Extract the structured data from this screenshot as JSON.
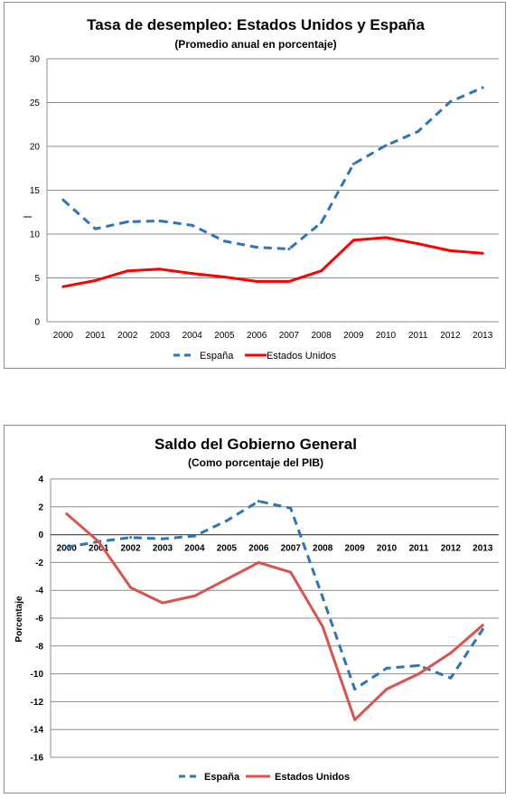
{
  "chart_data": [
    {
      "type": "line",
      "title": "Tasa de desempleo: Estados Unidos y España",
      "subtitle": "(Promedio anual en porcentaje)",
      "xlabel": "",
      "ylabel": "",
      "categories": [
        "2000",
        "2001",
        "2002",
        "2003",
        "2004",
        "2005",
        "2006",
        "2007",
        "2008",
        "2009",
        "2010",
        "2011",
        "2012",
        "2013"
      ],
      "ylim": [
        0,
        30
      ],
      "yticks": [
        0,
        5,
        10,
        15,
        20,
        25,
        30
      ],
      "grid": true,
      "legend": "bottom",
      "series": [
        {
          "name": "España",
          "style": "dashed",
          "color": "#2e75b6",
          "values": [
            13.9,
            10.6,
            11.4,
            11.5,
            11.0,
            9.2,
            8.5,
            8.3,
            11.3,
            18.0,
            20.1,
            21.7,
            25.1,
            26.7
          ]
        },
        {
          "name": "Estados Unidos",
          "style": "solid",
          "color": "#ff0000",
          "values": [
            4.0,
            4.7,
            5.8,
            6.0,
            5.5,
            5.1,
            4.6,
            4.6,
            5.8,
            9.3,
            9.6,
            8.9,
            8.1,
            7.8
          ]
        }
      ]
    },
    {
      "type": "line",
      "title": "Saldo del Gobierno General",
      "subtitle": "(Como porcentaje del PIB)",
      "xlabel": "",
      "ylabel": "Porcentaje",
      "categories": [
        "2000",
        "2001",
        "2002",
        "2003",
        "2004",
        "2005",
        "2006",
        "2007",
        "2008",
        "2009",
        "2010",
        "2011",
        "2012",
        "2013"
      ],
      "ylim": [
        -16,
        4
      ],
      "yticks": [
        -16,
        -14,
        -12,
        -10,
        -8,
        -6,
        -4,
        -2,
        0,
        2,
        4
      ],
      "grid": true,
      "legend": "bottom",
      "series": [
        {
          "name": "España",
          "style": "dashed",
          "color": "#2e75b6",
          "values": [
            -0.9,
            -0.5,
            -0.2,
            -0.3,
            -0.1,
            1.0,
            2.4,
            1.9,
            -4.5,
            -11.1,
            -9.6,
            -9.4,
            -10.3,
            -6.8
          ]
        },
        {
          "name": "Estados Unidos",
          "style": "solid",
          "color": "#d9534f",
          "values": [
            1.5,
            -0.5,
            -3.8,
            -4.9,
            -4.4,
            -3.2,
            -2.0,
            -2.7,
            -6.6,
            -13.3,
            -11.1,
            -10.0,
            -8.5,
            -6.5
          ]
        }
      ]
    }
  ]
}
